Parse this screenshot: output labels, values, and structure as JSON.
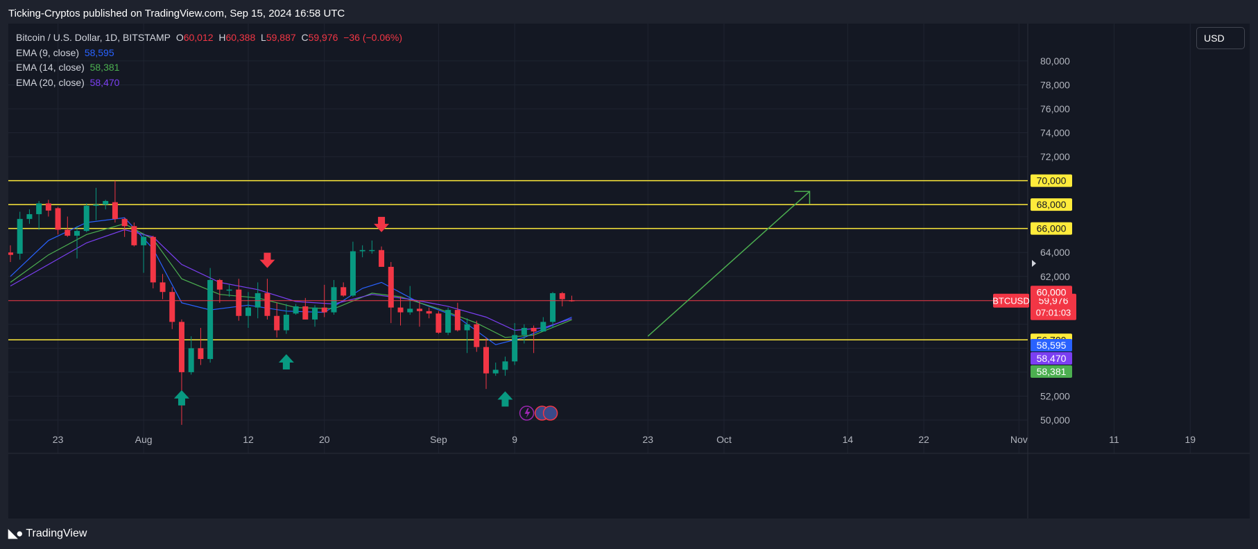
{
  "header": {
    "publisher_line": "Ticking-Cryptos published on TradingView.com, Sep 15, 2024 16:58 UTC"
  },
  "legend": {
    "symbol": "Bitcoin / U.S. Dollar, 1D, BITSTAMP",
    "o_label": "O",
    "o_value": "60,012",
    "h_label": "H",
    "h_value": "60,388",
    "l_label": "L",
    "l_value": "59,887",
    "c_label": "C",
    "c_value": "59,976",
    "change": "−36 (−0.06%)",
    "ema9_label": "EMA (9, close)",
    "ema9_value": "58,595",
    "ema14_label": "EMA (14, close)",
    "ema14_value": "58,381",
    "ema20_label": "EMA (20, close)",
    "ema20_value": "58,470"
  },
  "currency_button": "USD",
  "footer": {
    "brand": "TradingView",
    "logo_icon": "tradingview-logo-icon"
  },
  "chart_data": {
    "type": "candlestick",
    "symbol": "BTCUSD",
    "timeframe": "1D",
    "exchange": "BITSTAMP",
    "y_axis": {
      "min": 49500,
      "max": 81500,
      "ticks": [
        "80,000",
        "78,000",
        "76,000",
        "74,000",
        "72,000",
        "64,000",
        "62,000",
        "54,000",
        "52,000",
        "50,000"
      ]
    },
    "x_axis": {
      "start_date": "2024-07-18",
      "end_date": "2024-11-22",
      "ticks": [
        {
          "label": "23",
          "date": "2024-07-23"
        },
        {
          "label": "Aug",
          "date": "2024-08-01"
        },
        {
          "label": "12",
          "date": "2024-08-12"
        },
        {
          "label": "20",
          "date": "2024-08-20"
        },
        {
          "label": "Sep",
          "date": "2024-09-01"
        },
        {
          "label": "9",
          "date": "2024-09-09"
        },
        {
          "label": "23",
          "date": "2024-09-23"
        },
        {
          "label": "Oct",
          "date": "2024-10-01"
        },
        {
          "label": "14",
          "date": "2024-10-14"
        },
        {
          "label": "22",
          "date": "2024-10-22"
        },
        {
          "label": "Nov",
          "date": "2024-11-01"
        },
        {
          "label": "11",
          "date": "2024-11-11"
        },
        {
          "label": "19",
          "date": "2024-11-19"
        }
      ]
    },
    "candles": [
      {
        "d": "2024-07-18",
        "o": 64000,
        "h": 64600,
        "l": 63200,
        "c": 63800
      },
      {
        "d": "2024-07-19",
        "o": 63900,
        "h": 67400,
        "l": 63400,
        "c": 66800
      },
      {
        "d": "2024-07-20",
        "o": 66800,
        "h": 67600,
        "l": 66400,
        "c": 67200
      },
      {
        "d": "2024-07-21",
        "o": 67200,
        "h": 68300,
        "l": 65900,
        "c": 68100
      },
      {
        "d": "2024-07-22",
        "o": 68100,
        "h": 68400,
        "l": 67000,
        "c": 67500
      },
      {
        "d": "2024-07-23",
        "o": 67700,
        "h": 67800,
        "l": 65500,
        "c": 65900
      },
      {
        "d": "2024-07-24",
        "o": 65900,
        "h": 67000,
        "l": 65300,
        "c": 65400
      },
      {
        "d": "2024-07-25",
        "o": 65400,
        "h": 66200,
        "l": 63500,
        "c": 65800
      },
      {
        "d": "2024-07-26",
        "o": 65800,
        "h": 68100,
        "l": 65700,
        "c": 67900
      },
      {
        "d": "2024-07-27",
        "o": 67900,
        "h": 69400,
        "l": 66700,
        "c": 68000
      },
      {
        "d": "2024-07-28",
        "o": 68000,
        "h": 68400,
        "l": 67600,
        "c": 68300
      },
      {
        "d": "2024-07-29",
        "o": 68200,
        "h": 70000,
        "l": 66500,
        "c": 66800
      },
      {
        "d": "2024-07-30",
        "o": 66800,
        "h": 66900,
        "l": 65300,
        "c": 66200
      },
      {
        "d": "2024-07-31",
        "o": 66200,
        "h": 66500,
        "l": 64500,
        "c": 64600
      },
      {
        "d": "2024-08-01",
        "o": 64600,
        "h": 65600,
        "l": 62300,
        "c": 65300
      },
      {
        "d": "2024-08-02",
        "o": 65300,
        "h": 65400,
        "l": 61000,
        "c": 61500
      },
      {
        "d": "2024-08-03",
        "o": 61500,
        "h": 62200,
        "l": 60100,
        "c": 60700
      },
      {
        "d": "2024-08-04",
        "o": 60700,
        "h": 61100,
        "l": 57600,
        "c": 58200
      },
      {
        "d": "2024-08-05",
        "o": 58200,
        "h": 58400,
        "l": 49600,
        "c": 54000
      },
      {
        "d": "2024-08-06",
        "o": 54000,
        "h": 57000,
        "l": 53800,
        "c": 56000
      },
      {
        "d": "2024-08-07",
        "o": 56000,
        "h": 57700,
        "l": 54600,
        "c": 55100
      },
      {
        "d": "2024-08-08",
        "o": 55100,
        "h": 62700,
        "l": 54800,
        "c": 61700
      },
      {
        "d": "2024-08-09",
        "o": 61700,
        "h": 61800,
        "l": 59800,
        "c": 60900
      },
      {
        "d": "2024-08-10",
        "o": 60900,
        "h": 61300,
        "l": 60300,
        "c": 60900
      },
      {
        "d": "2024-08-11",
        "o": 60900,
        "h": 61800,
        "l": 58300,
        "c": 58700
      },
      {
        "d": "2024-08-12",
        "o": 58700,
        "h": 60700,
        "l": 57700,
        "c": 59400
      },
      {
        "d": "2024-08-13",
        "o": 59400,
        "h": 61500,
        "l": 58500,
        "c": 60600
      },
      {
        "d": "2024-08-14",
        "o": 60600,
        "h": 61800,
        "l": 58400,
        "c": 58700
      },
      {
        "d": "2024-08-15",
        "o": 58700,
        "h": 59800,
        "l": 56900,
        "c": 57500
      },
      {
        "d": "2024-08-16",
        "o": 57500,
        "h": 59700,
        "l": 57200,
        "c": 58800
      },
      {
        "d": "2024-08-17",
        "o": 58900,
        "h": 59700,
        "l": 58800,
        "c": 59500
      },
      {
        "d": "2024-08-18",
        "o": 59500,
        "h": 60200,
        "l": 58400,
        "c": 58400
      },
      {
        "d": "2024-08-19",
        "o": 58400,
        "h": 59600,
        "l": 57800,
        "c": 59400
      },
      {
        "d": "2024-08-20",
        "o": 59400,
        "h": 61300,
        "l": 58600,
        "c": 59000
      },
      {
        "d": "2024-08-21",
        "o": 59000,
        "h": 61700,
        "l": 58800,
        "c": 61100
      },
      {
        "d": "2024-08-22",
        "o": 61100,
        "h": 61500,
        "l": 60300,
        "c": 60400
      },
      {
        "d": "2024-08-23",
        "o": 60400,
        "h": 64900,
        "l": 60300,
        "c": 64100
      },
      {
        "d": "2024-08-24",
        "o": 64100,
        "h": 64600,
        "l": 63600,
        "c": 64200
      },
      {
        "d": "2024-08-25",
        "o": 64200,
        "h": 65000,
        "l": 63900,
        "c": 64200
      },
      {
        "d": "2024-08-26",
        "o": 64200,
        "h": 64500,
        "l": 62800,
        "c": 62800
      },
      {
        "d": "2024-08-27",
        "o": 62800,
        "h": 63200,
        "l": 58100,
        "c": 59400
      },
      {
        "d": "2024-08-28",
        "o": 59400,
        "h": 60300,
        "l": 57900,
        "c": 59000
      },
      {
        "d": "2024-08-29",
        "o": 59000,
        "h": 61200,
        "l": 58800,
        "c": 59300
      },
      {
        "d": "2024-08-30",
        "o": 59300,
        "h": 59900,
        "l": 57800,
        "c": 59100
      },
      {
        "d": "2024-08-31",
        "o": 59100,
        "h": 59400,
        "l": 58500,
        "c": 58900
      },
      {
        "d": "2024-09-01",
        "o": 58900,
        "h": 59100,
        "l": 57200,
        "c": 57300
      },
      {
        "d": "2024-09-02",
        "o": 57300,
        "h": 59400,
        "l": 57100,
        "c": 59200
      },
      {
        "d": "2024-09-03",
        "o": 59200,
        "h": 59800,
        "l": 57400,
        "c": 57500
      },
      {
        "d": "2024-09-04",
        "o": 57500,
        "h": 58500,
        "l": 55600,
        "c": 58000
      },
      {
        "d": "2024-09-05",
        "o": 58000,
        "h": 58300,
        "l": 55700,
        "c": 56100
      },
      {
        "d": "2024-09-06",
        "o": 56100,
        "h": 56900,
        "l": 52600,
        "c": 53900
      },
      {
        "d": "2024-09-07",
        "o": 53900,
        "h": 54800,
        "l": 53700,
        "c": 54200
      },
      {
        "d": "2024-09-08",
        "o": 54200,
        "h": 55300,
        "l": 53700,
        "c": 54900
      },
      {
        "d": "2024-09-09",
        "o": 54900,
        "h": 58100,
        "l": 54600,
        "c": 57100
      },
      {
        "d": "2024-09-10",
        "o": 57100,
        "h": 58000,
        "l": 56400,
        "c": 57700
      },
      {
        "d": "2024-09-11",
        "o": 57700,
        "h": 57900,
        "l": 55600,
        "c": 57400
      },
      {
        "d": "2024-09-12",
        "o": 57400,
        "h": 58600,
        "l": 57400,
        "c": 58200
      },
      {
        "d": "2024-09-13",
        "o": 58200,
        "h": 60700,
        "l": 57700,
        "c": 60600
      },
      {
        "d": "2024-09-14",
        "o": 60600,
        "h": 60700,
        "l": 59500,
        "c": 60100
      },
      {
        "d": "2024-09-15",
        "o": 60012,
        "h": 60388,
        "l": 59887,
        "c": 59976
      }
    ],
    "ema": [
      {
        "name": "EMA (9, close)",
        "color": "#2962ff",
        "points": [
          [
            "2024-07-18",
            62000
          ],
          [
            "2024-07-22",
            65000
          ],
          [
            "2024-07-26",
            66500
          ],
          [
            "2024-07-30",
            66900
          ],
          [
            "2024-08-02",
            64300
          ],
          [
            "2024-08-05",
            59800
          ],
          [
            "2024-08-08",
            59200
          ],
          [
            "2024-08-12",
            59600
          ],
          [
            "2024-08-16",
            59100
          ],
          [
            "2024-08-20",
            59000
          ],
          [
            "2024-08-24",
            61000
          ],
          [
            "2024-08-26",
            61500
          ],
          [
            "2024-08-30",
            59800
          ],
          [
            "2024-09-03",
            58600
          ],
          [
            "2024-09-07",
            56300
          ],
          [
            "2024-09-10",
            56900
          ],
          [
            "2024-09-15",
            58595
          ]
        ]
      },
      {
        "name": "EMA (14, close)",
        "color": "#4caf50",
        "points": [
          [
            "2024-07-18",
            61500
          ],
          [
            "2024-07-22",
            63800
          ],
          [
            "2024-07-26",
            65500
          ],
          [
            "2024-07-30",
            66400
          ],
          [
            "2024-08-02",
            65100
          ],
          [
            "2024-08-05",
            61800
          ],
          [
            "2024-08-09",
            60500
          ],
          [
            "2024-08-13",
            60200
          ],
          [
            "2024-08-17",
            59400
          ],
          [
            "2024-08-21",
            59300
          ],
          [
            "2024-08-25",
            60600
          ],
          [
            "2024-08-28",
            60300
          ],
          [
            "2024-09-01",
            59300
          ],
          [
            "2024-09-05",
            58100
          ],
          [
            "2024-09-08",
            56900
          ],
          [
            "2024-09-11",
            57100
          ],
          [
            "2024-09-15",
            58381
          ]
        ]
      },
      {
        "name": "EMA (20, close)",
        "color": "#7b3ff2",
        "points": [
          [
            "2024-07-18",
            61200
          ],
          [
            "2024-07-22",
            63000
          ],
          [
            "2024-07-26",
            64800
          ],
          [
            "2024-07-30",
            65900
          ],
          [
            "2024-08-02",
            65300
          ],
          [
            "2024-08-05",
            63000
          ],
          [
            "2024-08-09",
            61500
          ],
          [
            "2024-08-13",
            60900
          ],
          [
            "2024-08-17",
            59900
          ],
          [
            "2024-08-21",
            59700
          ],
          [
            "2024-08-25",
            60500
          ],
          [
            "2024-08-29",
            60100
          ],
          [
            "2024-09-02",
            59500
          ],
          [
            "2024-09-06",
            58600
          ],
          [
            "2024-09-09",
            57500
          ],
          [
            "2024-09-12",
            57700
          ],
          [
            "2024-09-15",
            58470
          ]
        ]
      }
    ],
    "horizontal_levels": [
      {
        "price": 70000,
        "label": "70,000",
        "color": "#ffeb3b"
      },
      {
        "price": 68000,
        "label": "68,000",
        "color": "#ffeb3b"
      },
      {
        "price": 66000,
        "label": "66,000",
        "color": "#ffeb3b"
      },
      {
        "price": 56700,
        "label": "56,700",
        "color": "#ffeb3b"
      }
    ],
    "price_line": {
      "price": 59976,
      "label": "59,976",
      "countdown": "07:01:03",
      "symbol_tag": "BTCUSD",
      "color": "#f23645"
    },
    "axis_badges": [
      {
        "price": 60000,
        "label": "60,000",
        "color": "#f23645"
      },
      {
        "price": 58595,
        "label": "58,595",
        "color": "#2962ff"
      },
      {
        "price": 58470,
        "label": "58,470",
        "color": "#7b3ff2"
      },
      {
        "price": 58381,
        "label": "58,381",
        "color": "#4caf50"
      }
    ],
    "annotations": {
      "down_arrows": [
        {
          "d": "2024-08-14",
          "price": 62700
        },
        {
          "d": "2024-08-26",
          "price": 65700
        }
      ],
      "up_arrows": [
        {
          "d": "2024-08-05",
          "price": 52500
        },
        {
          "d": "2024-08-16",
          "price": 55500
        },
        {
          "d": "2024-09-08",
          "price": 52400
        }
      ],
      "trend_arrow": {
        "from": {
          "d": "2024-09-23",
          "price": 57000
        },
        "to": {
          "d": "2024-10-10",
          "price": 69100
        },
        "color": "#4caf50"
      }
    },
    "colors": {
      "up": "#089981",
      "down": "#f23645",
      "grid": "#1f2431",
      "background": "#141823"
    }
  }
}
